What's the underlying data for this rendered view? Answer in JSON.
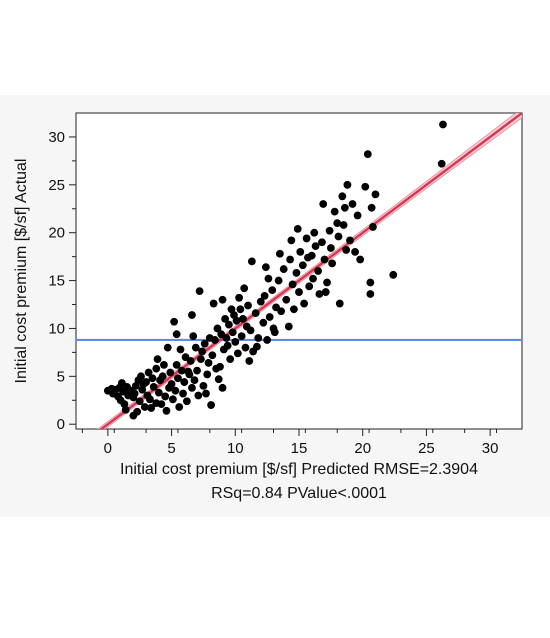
{
  "chart_data": {
    "type": "scatter",
    "title": "",
    "xlabel_line1": "Initial cost premium [$/sf] Predicted RMSE=2.3904",
    "xlabel_line2": "RSq=0.84 PValue<.0001",
    "ylabel": "Initial cost premium [$/sf] Actual",
    "xlim": [
      -2.5,
      32.5
    ],
    "ylim": [
      -0.5,
      32.5
    ],
    "xticks": [
      0,
      5,
      10,
      15,
      20,
      25,
      30
    ],
    "yticks": [
      0,
      5,
      10,
      15,
      20,
      25,
      30
    ],
    "grid": false,
    "mean_line_y": 8.8,
    "fit_line": {
      "slope": 1.0,
      "intercept": 0.0
    },
    "colors": {
      "points": "#000000",
      "fit": "#d9364f",
      "band": "#f6c3cc",
      "mean": "#5b8fe6",
      "background": "#f6f6f6"
    },
    "points": [
      [
        0.0,
        3.5
      ],
      [
        0.3,
        3.7
      ],
      [
        0.6,
        3.6
      ],
      [
        0.9,
        3.8
      ],
      [
        1.2,
        3.4
      ],
      [
        1.5,
        3.9
      ],
      [
        0.4,
        3.2
      ],
      [
        0.8,
        2.9
      ],
      [
        1.0,
        2.5
      ],
      [
        1.3,
        2.1
      ],
      [
        1.4,
        1.5
      ],
      [
        1.6,
        3.0
      ],
      [
        1.8,
        3.5
      ],
      [
        2.0,
        2.8
      ],
      [
        2.2,
        4.0
      ],
      [
        2.1,
        3.2
      ],
      [
        2.5,
        2.4
      ],
      [
        2.7,
        3.6
      ],
      [
        2.9,
        1.8
      ],
      [
        2.3,
        1.3
      ],
      [
        2.0,
        0.9
      ],
      [
        2.8,
        4.2
      ],
      [
        3.0,
        4.4
      ],
      [
        3.1,
        3.0
      ],
      [
        3.3,
        2.6
      ],
      [
        3.5,
        4.8
      ],
      [
        3.6,
        3.9
      ],
      [
        3.8,
        2.2
      ],
      [
        3.4,
        1.7
      ],
      [
        4.0,
        3.3
      ],
      [
        4.1,
        4.6
      ],
      [
        4.3,
        5.0
      ],
      [
        4.5,
        2.9
      ],
      [
        4.6,
        1.4
      ],
      [
        4.8,
        3.8
      ],
      [
        4.9,
        5.4
      ],
      [
        5.0,
        4.2
      ],
      [
        5.1,
        2.6
      ],
      [
        5.3,
        3.5
      ],
      [
        5.4,
        6.2
      ],
      [
        5.5,
        4.8
      ],
      [
        5.6,
        1.8
      ],
      [
        5.8,
        5.6
      ],
      [
        5.9,
        3.2
      ],
      [
        6.0,
        4.4
      ],
      [
        6.1,
        7.0
      ],
      [
        6.2,
        2.4
      ],
      [
        6.4,
        5.2
      ],
      [
        6.5,
        6.6
      ],
      [
        6.6,
        3.8
      ],
      [
        6.8,
        4.6
      ],
      [
        6.9,
        8.0
      ],
      [
        7.0,
        5.6
      ],
      [
        7.1,
        3.0
      ],
      [
        7.3,
        6.8
      ],
      [
        7.4,
        7.6
      ],
      [
        7.5,
        4.0
      ],
      [
        7.6,
        8.4
      ],
      [
        7.8,
        5.2
      ],
      [
        7.9,
        6.4
      ],
      [
        8.0,
        9.0
      ],
      [
        8.1,
        2.0
      ],
      [
        8.2,
        7.2
      ],
      [
        8.4,
        8.8
      ],
      [
        8.5,
        5.8
      ],
      [
        8.6,
        10.0
      ],
      [
        8.8,
        6.0
      ],
      [
        8.9,
        9.4
      ],
      [
        9.0,
        3.8
      ],
      [
        9.1,
        7.8
      ],
      [
        9.2,
        11.0
      ],
      [
        9.4,
        8.2
      ],
      [
        9.5,
        10.4
      ],
      [
        9.6,
        6.8
      ],
      [
        9.8,
        9.6
      ],
      [
        9.9,
        11.4
      ],
      [
        10.0,
        8.6
      ],
      [
        10.1,
        10.8
      ],
      [
        10.2,
        7.4
      ],
      [
        10.4,
        12.0
      ],
      [
        10.5,
        9.2
      ],
      [
        10.6,
        11.0
      ],
      [
        10.8,
        8.0
      ],
      [
        10.9,
        10.2
      ],
      [
        11.0,
        12.4
      ],
      [
        11.2,
        9.8
      ],
      [
        11.3,
        17.0
      ],
      [
        11.4,
        7.6
      ],
      [
        11.6,
        11.6
      ],
      [
        11.8,
        9.0
      ],
      [
        12.0,
        12.8
      ],
      [
        12.2,
        10.6
      ],
      [
        12.3,
        13.4
      ],
      [
        12.5,
        8.8
      ],
      [
        12.7,
        11.2
      ],
      [
        12.9,
        14.0
      ],
      [
        13.0,
        10.0
      ],
      [
        13.2,
        12.2
      ],
      [
        13.4,
        15.0
      ],
      [
        13.6,
        11.8
      ],
      [
        13.8,
        16.2
      ],
      [
        14.0,
        13.0
      ],
      [
        14.2,
        10.2
      ],
      [
        14.3,
        17.2
      ],
      [
        14.5,
        14.6
      ],
      [
        14.6,
        12.0
      ],
      [
        14.8,
        15.8
      ],
      [
        15.0,
        13.8
      ],
      [
        15.1,
        18.0
      ],
      [
        15.3,
        16.6
      ],
      [
        15.4,
        12.6
      ],
      [
        15.6,
        19.4
      ],
      [
        15.8,
        14.4
      ],
      [
        16.0,
        17.6
      ],
      [
        16.1,
        15.2
      ],
      [
        16.3,
        18.6
      ],
      [
        16.5,
        16.0
      ],
      [
        16.6,
        13.6
      ],
      [
        16.8,
        19.0
      ],
      [
        17.0,
        17.2
      ],
      [
        17.2,
        14.8
      ],
      [
        17.4,
        20.2
      ],
      [
        17.5,
        18.4
      ],
      [
        17.6,
        16.8
      ],
      [
        17.8,
        22.2
      ],
      [
        18.0,
        21.0
      ],
      [
        18.1,
        19.6
      ],
      [
        18.2,
        12.6
      ],
      [
        18.4,
        23.8
      ],
      [
        18.5,
        20.8
      ],
      [
        18.6,
        22.6
      ],
      [
        18.7,
        18.2
      ],
      [
        18.8,
        25.0
      ],
      [
        19.0,
        19.2
      ],
      [
        19.2,
        23.0
      ],
      [
        19.4,
        18.0
      ],
      [
        19.6,
        21.8
      ],
      [
        19.8,
        17.2
      ],
      [
        20.2,
        24.8
      ],
      [
        20.4,
        28.2
      ],
      [
        20.6,
        13.6
      ],
      [
        20.6,
        14.8
      ],
      [
        20.7,
        22.6
      ],
      [
        20.8,
        20.6
      ],
      [
        21.0,
        24.0
      ],
      [
        22.4,
        15.6
      ],
      [
        26.2,
        27.2
      ],
      [
        26.3,
        31.3
      ],
      [
        7.2,
        13.9
      ],
      [
        5.2,
        10.7
      ],
      [
        3.8,
        5.8
      ],
      [
        4.4,
        6.2
      ],
      [
        6.3,
        5.5
      ],
      [
        8.7,
        4.7
      ],
      [
        9.7,
        12.0
      ],
      [
        13.1,
        9.6
      ],
      [
        15.7,
        17.4
      ],
      [
        17.1,
        13.8
      ],
      [
        11.7,
        8.1
      ],
      [
        12.6,
        15.2
      ],
      [
        6.7,
        9.2
      ],
      [
        5.7,
        7.8
      ],
      [
        2.6,
        5.0
      ],
      [
        1.1,
        4.3
      ],
      [
        3.2,
        5.4
      ],
      [
        4.2,
        2.1
      ],
      [
        7.7,
        3.2
      ],
      [
        8.3,
        12.6
      ],
      [
        9.3,
        9.0
      ],
      [
        10.3,
        13.2
      ],
      [
        11.1,
        6.6
      ],
      [
        13.5,
        17.8
      ],
      [
        14.9,
        20.4
      ],
      [
        16.2,
        20.0
      ],
      [
        16.9,
        23.0
      ],
      [
        14.4,
        19.2
      ],
      [
        12.4,
        16.4
      ],
      [
        10.7,
        14.2
      ],
      [
        9.0,
        13.0
      ],
      [
        6.6,
        11.4
      ],
      [
        5.4,
        9.4
      ],
      [
        4.7,
        8.0
      ],
      [
        3.9,
        6.8
      ],
      [
        2.4,
        4.6
      ]
    ]
  }
}
